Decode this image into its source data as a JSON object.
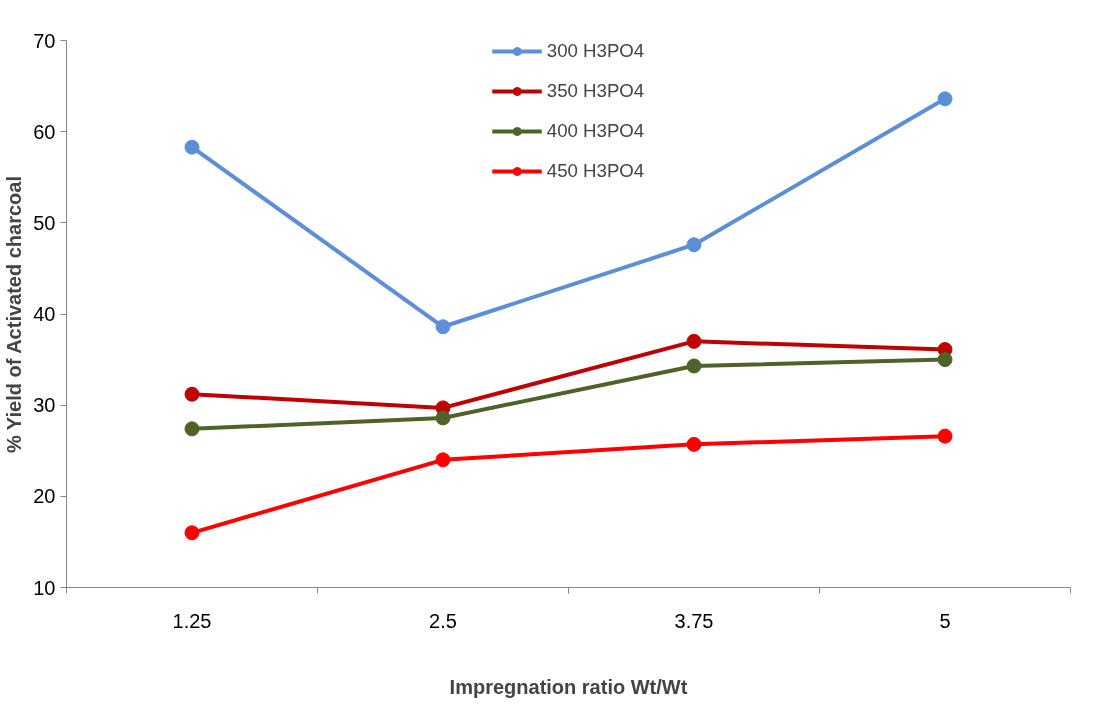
{
  "chart_data": {
    "type": "line",
    "xlabel": "Impregnation ratio Wt/Wt",
    "ylabel": "% Yield of Activated charcoal",
    "categories": [
      "1.25",
      "2.5",
      "3.75",
      "5"
    ],
    "series": [
      {
        "name": "300 H3PO4",
        "color": "#5b8fd6",
        "values": [
          58.3,
          38.6,
          47.6,
          63.6
        ]
      },
      {
        "name": "350 H3PO4",
        "color": "#c00000",
        "values": [
          31.2,
          29.7,
          37.0,
          36.1
        ]
      },
      {
        "name": "400 H3PO4",
        "color": "#4f6228",
        "values": [
          27.4,
          28.6,
          34.3,
          35.0
        ]
      },
      {
        "name": "450 H3PO4",
        "color": "#ff0000",
        "values": [
          16.0,
          24.0,
          25.7,
          26.6
        ]
      }
    ],
    "ylim": [
      10,
      70
    ],
    "yticks": [
      10,
      20,
      30,
      40,
      50,
      60,
      70
    ],
    "grid": false,
    "legend": "top",
    "marker": "circle",
    "line_style": "solid"
  }
}
